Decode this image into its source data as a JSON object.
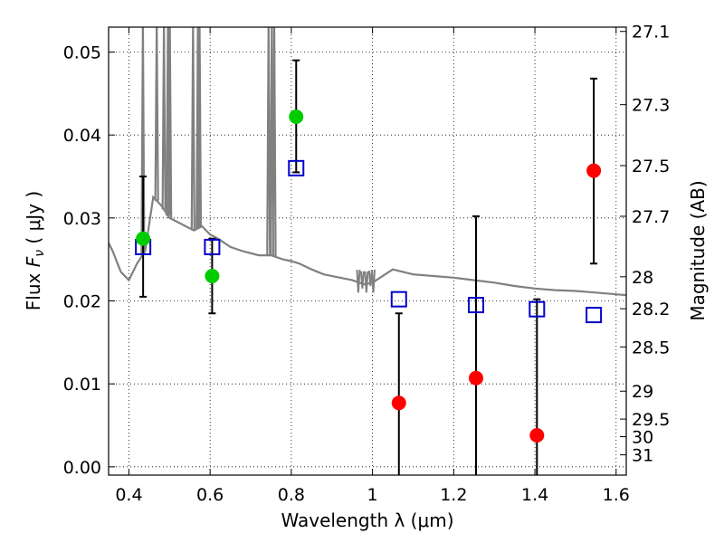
{
  "chart_data": {
    "type": "scatter",
    "xlabel": "Wavelength  λ (μm)",
    "ylabel": "Flux  F_ν  ( μJy )",
    "ylabel_right": "Magnitude (AB)",
    "xlim": [
      0.35,
      1.625
    ],
    "ylim": [
      -0.001,
      0.053
    ],
    "grid": true,
    "x_ticks": [
      {
        "value": 0.4,
        "label": "0.4"
      },
      {
        "value": 0.6,
        "label": "0.6"
      },
      {
        "value": 0.8,
        "label": "0.8"
      },
      {
        "value": 1.0,
        "label": "1"
      },
      {
        "value": 1.2,
        "label": "1.2"
      },
      {
        "value": 1.4,
        "label": "1.4"
      },
      {
        "value": 1.6,
        "label": "1.6"
      }
    ],
    "y_ticks": [
      {
        "value": 0.0,
        "label": "0.00"
      },
      {
        "value": 0.01,
        "label": "0.01"
      },
      {
        "value": 0.02,
        "label": "0.02"
      },
      {
        "value": 0.03,
        "label": "0.03"
      },
      {
        "value": 0.04,
        "label": "0.04"
      },
      {
        "value": 0.05,
        "label": "0.05"
      }
    ],
    "right_ticks": [
      {
        "value": 27.1,
        "label": "27.1"
      },
      {
        "value": 27.3,
        "label": "27.3"
      },
      {
        "value": 27.5,
        "label": "27.5"
      },
      {
        "value": 27.7,
        "label": "27.7"
      },
      {
        "value": 28.0,
        "label": "28"
      },
      {
        "value": 28.2,
        "label": "28.2"
      },
      {
        "value": 28.5,
        "label": "28.5"
      },
      {
        "value": 29.0,
        "label": "29"
      },
      {
        "value": 29.5,
        "label": "29.5"
      },
      {
        "value": 30.0,
        "label": "30"
      },
      {
        "value": 31.0,
        "label": "31"
      }
    ],
    "model_spectrum": {
      "color": "#808080",
      "points": [
        [
          0.35,
          0.027
        ],
        [
          0.36,
          0.026
        ],
        [
          0.38,
          0.0235
        ],
        [
          0.4,
          0.0225
        ],
        [
          0.42,
          0.0245
        ],
        [
          0.44,
          0.026
        ],
        [
          0.46,
          0.0325
        ],
        [
          0.48,
          0.0315
        ],
        [
          0.5,
          0.03
        ],
        [
          0.52,
          0.0295
        ],
        [
          0.54,
          0.029
        ],
        [
          0.56,
          0.0285
        ],
        [
          0.58,
          0.029
        ],
        [
          0.6,
          0.028
        ],
        [
          0.62,
          0.0275
        ],
        [
          0.65,
          0.0265
        ],
        [
          0.68,
          0.026
        ],
        [
          0.72,
          0.0255
        ],
        [
          0.75,
          0.0255
        ],
        [
          0.78,
          0.025
        ],
        [
          0.8,
          0.0248
        ],
        [
          0.82,
          0.0245
        ],
        [
          0.85,
          0.0238
        ],
        [
          0.88,
          0.0232
        ],
        [
          0.92,
          0.0228
        ],
        [
          0.95,
          0.0225
        ],
        [
          0.98,
          0.022
        ],
        [
          1.0,
          0.0222
        ],
        [
          1.05,
          0.0238
        ],
        [
          1.1,
          0.0232
        ],
        [
          1.15,
          0.023
        ],
        [
          1.2,
          0.0228
        ],
        [
          1.25,
          0.0225
        ],
        [
          1.3,
          0.0222
        ],
        [
          1.35,
          0.0218
        ],
        [
          1.4,
          0.0215
        ],
        [
          1.45,
          0.0213
        ],
        [
          1.5,
          0.0212
        ],
        [
          1.55,
          0.021
        ],
        [
          1.6,
          0.0208
        ],
        [
          1.625,
          0.0207
        ]
      ],
      "emission_lines": [
        {
          "x": 0.4345,
          "peak": 0.053
        },
        {
          "x": 0.4685,
          "peak": 0.053
        },
        {
          "x": 0.4863,
          "peak": 0.053
        },
        {
          "x": 0.4962,
          "peak": 0.053
        },
        {
          "x": 0.5008,
          "peak": 0.053
        },
        {
          "x": 0.558,
          "peak": 0.053
        },
        {
          "x": 0.57,
          "peak": 0.053
        },
        {
          "x": 0.574,
          "peak": 0.053
        },
        {
          "x": 0.744,
          "peak": 0.053
        },
        {
          "x": 0.752,
          "peak": 0.053
        },
        {
          "x": 0.758,
          "peak": 0.053
        }
      ],
      "absorption_dips": [
        {
          "x": 0.965,
          "low": 0.021
        },
        {
          "x": 0.975,
          "low": 0.0215
        },
        {
          "x": 0.985,
          "low": 0.021
        },
        {
          "x": 0.995,
          "low": 0.0218
        },
        {
          "x": 1.002,
          "low": 0.021
        }
      ]
    },
    "model_photometry": {
      "marker": "open-square",
      "color": "#0000cc",
      "points": [
        {
          "x": 0.435,
          "y": 0.0265
        },
        {
          "x": 0.605,
          "y": 0.0265
        },
        {
          "x": 0.812,
          "y": 0.036
        },
        {
          "x": 1.065,
          "y": 0.0202
        },
        {
          "x": 1.255,
          "y": 0.0195
        },
        {
          "x": 1.405,
          "y": 0.019
        },
        {
          "x": 1.545,
          "y": 0.0183
        }
      ]
    },
    "detections": {
      "marker": "filled-circle",
      "color": "#00cc00",
      "points": [
        {
          "x": 0.435,
          "y": 0.0275,
          "err_lo": 0.0205,
          "err_hi": 0.035
        },
        {
          "x": 0.605,
          "y": 0.023,
          "err_lo": 0.0185,
          "err_hi": 0.0275
        },
        {
          "x": 0.812,
          "y": 0.0422,
          "err_lo": 0.0355,
          "err_hi": 0.049
        }
      ]
    },
    "nondetections": {
      "marker": "filled-circle",
      "color": "#ff0000",
      "points": [
        {
          "x": 1.065,
          "y": 0.0077,
          "err_lo": -0.002,
          "err_hi": 0.0185
        },
        {
          "x": 1.255,
          "y": 0.0107,
          "err_lo": -0.002,
          "err_hi": 0.0302
        },
        {
          "x": 1.405,
          "y": 0.0038,
          "err_lo": -0.002,
          "err_hi": 0.0202
        },
        {
          "x": 1.545,
          "y": 0.0357,
          "err_lo": 0.0245,
          "err_hi": 0.0468
        }
      ]
    }
  }
}
